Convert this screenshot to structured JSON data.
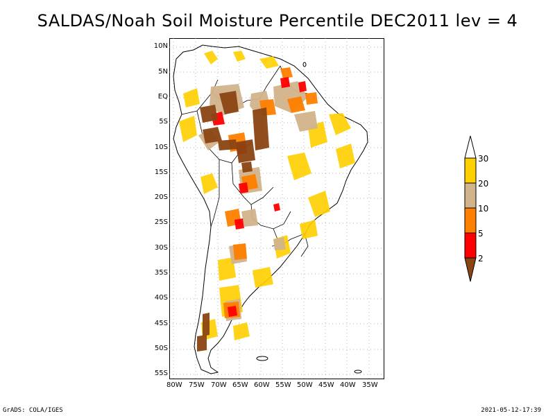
{
  "title": "SALDAS/Noah Soil Moisture Percentile DEC2011 lev = 4",
  "lat_labels": [
    "10N",
    "5N",
    "EQ",
    "5S",
    "10S",
    "15S",
    "20S",
    "25S",
    "30S",
    "35S",
    "40S",
    "45S",
    "50S",
    "55S"
  ],
  "lon_labels": [
    "80W",
    "75W",
    "70W",
    "65W",
    "60W",
    "55W",
    "50W",
    "45W",
    "40W",
    "35W"
  ],
  "colorbar": {
    "labels": [
      "30",
      "20",
      "10",
      "5",
      "2"
    ],
    "colors": {
      "above_30": "#ffffff",
      "20_30": "#ffd000",
      "10_20": "#d2b48c",
      "5_10": "#ff8000",
      "2_5": "#ff0000",
      "below_2": "#8b4513"
    }
  },
  "footer": {
    "left": "GrADS: COLA/IGES",
    "right": "2021-05-12-17:39"
  }
}
